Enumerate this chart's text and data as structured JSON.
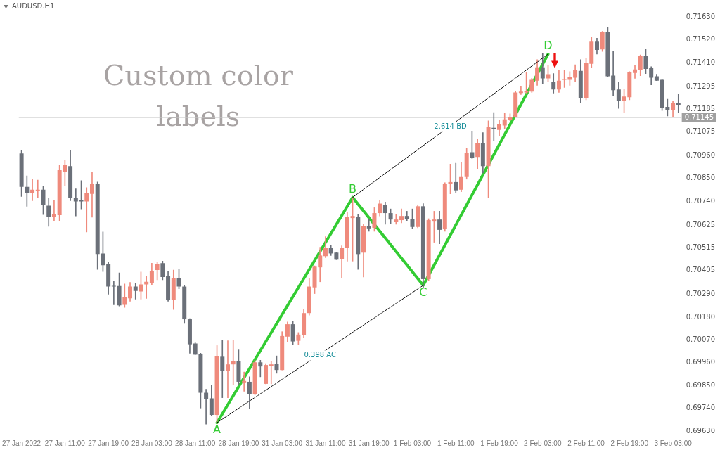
{
  "chart_data": {
    "type": "candlestick",
    "title": "AUDUSD.H1",
    "categories": [
      "27 Jan 2022",
      null,
      null,
      null,
      null,
      null,
      null,
      null,
      "27 Jan 11:00",
      null,
      null,
      null,
      null,
      null,
      null,
      null,
      "27 Jan 19:00",
      null,
      null,
      null,
      null,
      null,
      null,
      null,
      "28 Jan 03:00",
      null,
      null,
      null,
      null,
      null,
      null,
      null,
      "28 Jan 11:00",
      null,
      null,
      null,
      null,
      null,
      null,
      null,
      "28 Jan 19:00",
      null,
      null,
      null,
      null,
      null,
      null,
      null,
      "31 Jan 03:00",
      null,
      null,
      null,
      null,
      null,
      null,
      null,
      "31 Jan 11:00",
      null,
      null,
      null,
      null,
      null,
      null,
      null,
      "31 Jan 19:00",
      null,
      null,
      null,
      null,
      null,
      null,
      null,
      "1 Feb 03:00",
      null,
      null,
      null,
      null,
      null,
      null,
      null,
      "1 Feb 11:00",
      null,
      null,
      null,
      null,
      null,
      null,
      null,
      "1 Feb 19:00",
      null,
      null,
      null,
      null,
      null,
      null,
      null,
      "2 Feb 03:00",
      null,
      null,
      null,
      null,
      null,
      null,
      null,
      "2 Feb 11:00",
      null,
      null,
      null,
      null,
      null,
      null,
      null,
      "2 Feb 19:00",
      null,
      null,
      null,
      null,
      null,
      null,
      null,
      "3 Feb 03:00",
      null
    ],
    "ohlc": [
      [
        0.70971,
        0.70987,
        0.70763,
        0.7081
      ],
      [
        0.7081,
        0.70863,
        0.70716,
        0.7078
      ],
      [
        0.7078,
        0.70847,
        0.70743,
        0.70796
      ],
      [
        0.7079,
        0.70843,
        0.70759,
        0.70796
      ],
      [
        0.70796,
        0.70813,
        0.70676,
        0.70723
      ],
      [
        0.70719,
        0.70753,
        0.70619,
        0.70663
      ],
      [
        0.70663,
        0.70746,
        0.70646,
        0.70679
      ],
      [
        0.70673,
        0.70914,
        0.70646,
        0.7089
      ],
      [
        0.70884,
        0.70937,
        0.70813,
        0.70914
      ],
      [
        0.7091,
        0.70984,
        0.70743,
        0.70756
      ],
      [
        0.70756,
        0.708,
        0.70669,
        0.70739
      ],
      [
        0.70746,
        0.7084,
        0.70703,
        0.70739
      ],
      [
        0.70739,
        0.70806,
        0.70592,
        0.7078
      ],
      [
        0.70776,
        0.7088,
        0.70663,
        0.70823
      ],
      [
        0.70823,
        0.70833,
        0.70411,
        0.70485
      ],
      [
        0.70488,
        0.70592,
        0.70401,
        0.70431
      ],
      [
        0.70435,
        0.70445,
        0.70291,
        0.70328
      ],
      [
        0.70331,
        0.70354,
        0.7024,
        0.70328
      ],
      [
        0.70331,
        0.70394,
        0.70234,
        0.70237
      ],
      [
        0.7024,
        0.70341,
        0.70227,
        0.70277
      ],
      [
        0.70271,
        0.70348,
        0.70257,
        0.70328
      ],
      [
        0.70328,
        0.70344,
        0.70267,
        0.70307
      ],
      [
        0.70304,
        0.70398,
        0.70267,
        0.70338
      ],
      [
        0.70338,
        0.70378,
        0.70271,
        0.70351
      ],
      [
        0.70344,
        0.70441,
        0.70334,
        0.70404
      ],
      [
        0.70408,
        0.70448,
        0.70361,
        0.70438
      ],
      [
        0.70441,
        0.70451,
        0.70361,
        0.70374
      ],
      [
        0.70378,
        0.70401,
        0.70257,
        0.70264
      ],
      [
        0.70264,
        0.70408,
        0.70217,
        0.70368
      ],
      [
        0.70368,
        0.70411,
        0.70317,
        0.70328
      ],
      [
        0.70328,
        0.70334,
        0.7015,
        0.7017
      ],
      [
        0.7017,
        0.70173,
        0.70006,
        0.70049
      ],
      [
        0.70053,
        0.70056,
        0.69999,
        0.69999
      ],
      [
        0.70003,
        0.70006,
        0.69741,
        0.69815
      ],
      [
        0.69815,
        0.69832,
        0.69663,
        0.69785
      ],
      [
        0.69788,
        0.69852,
        0.69704,
        0.69708
      ],
      [
        0.69708,
        0.70043,
        0.69667,
        0.69993
      ],
      [
        0.69989,
        0.70069,
        0.69791,
        0.69922
      ],
      [
        0.69919,
        0.70066,
        0.69791,
        0.69952
      ],
      [
        0.69952,
        0.70069,
        0.69855,
        0.69969
      ],
      [
        0.69969,
        0.70022,
        0.69855,
        0.69868
      ],
      [
        0.69865,
        0.69915,
        0.69822,
        0.69872
      ],
      [
        0.69868,
        0.69892,
        0.69738,
        0.69808
      ],
      [
        0.69808,
        0.69972,
        0.69805,
        0.69962
      ],
      [
        0.69962,
        0.69972,
        0.69892,
        0.69942
      ],
      [
        0.69858,
        0.69956,
        0.69858,
        0.69949
      ],
      [
        0.69946,
        0.69966,
        0.69858,
        0.69952
      ],
      [
        0.69956,
        0.69993,
        0.69909,
        0.69925
      ],
      [
        0.69925,
        0.7011,
        0.69925,
        0.70089
      ],
      [
        0.70086,
        0.70157,
        0.70059,
        0.70146
      ],
      [
        0.70146,
        0.7016,
        0.70049,
        0.70063
      ],
      [
        0.70066,
        0.70106,
        0.70049,
        0.70096
      ],
      [
        0.70093,
        0.70217,
        0.70083,
        0.702
      ],
      [
        0.702,
        0.70368,
        0.7019,
        0.70328
      ],
      [
        0.70324,
        0.70428,
        0.70294,
        0.70424
      ],
      [
        0.70421,
        0.70518,
        0.70351,
        0.70478
      ],
      [
        0.70475,
        0.70569,
        0.70468,
        0.70515
      ],
      [
        0.70515,
        0.70528,
        0.70478,
        0.70488
      ],
      [
        0.70492,
        0.70495,
        0.70458,
        0.70458
      ],
      [
        0.70461,
        0.70525,
        0.70368,
        0.70515
      ],
      [
        0.70515,
        0.70686,
        0.70451,
        0.70663
      ],
      [
        0.70659,
        0.70759,
        0.70451,
        0.70669
      ],
      [
        0.70666,
        0.70676,
        0.70411,
        0.70485
      ],
      [
        0.70492,
        0.70629,
        0.70374,
        0.70619
      ],
      [
        0.70619,
        0.70652,
        0.70595,
        0.70609
      ],
      [
        0.70612,
        0.70709,
        0.70595,
        0.70683
      ],
      [
        0.70683,
        0.70743,
        0.70669,
        0.70729
      ],
      [
        0.70723,
        0.70736,
        0.70629,
        0.70683
      ],
      [
        0.70683,
        0.70703,
        0.70632,
        0.70652
      ],
      [
        0.70639,
        0.70676,
        0.70629,
        0.70652
      ],
      [
        0.70649,
        0.70703,
        0.70636,
        0.70669
      ],
      [
        0.70669,
        0.70692,
        0.70646,
        0.70656
      ],
      [
        0.70656,
        0.70703,
        0.70609,
        0.70616
      ],
      [
        0.70616,
        0.70723,
        0.70612,
        0.70716
      ],
      [
        0.70716,
        0.70729,
        0.70324,
        0.70364
      ],
      [
        0.70364,
        0.70656,
        0.70357,
        0.70649
      ],
      [
        0.70642,
        0.70692,
        0.70542,
        0.70652
      ],
      [
        0.70652,
        0.70692,
        0.70535,
        0.70602
      ],
      [
        0.70606,
        0.7083,
        0.70595,
        0.70823
      ],
      [
        0.70823,
        0.7092,
        0.70776,
        0.70833
      ],
      [
        0.70833,
        0.70924,
        0.7078,
        0.70793
      ],
      [
        0.70796,
        0.70927,
        0.70786,
        0.70857
      ],
      [
        0.70857,
        0.70998,
        0.70847,
        0.70974
      ],
      [
        0.70977,
        0.71079,
        0.70947,
        0.7095
      ],
      [
        0.70954,
        0.71039,
        0.70897,
        0.71021
      ],
      [
        0.71021,
        0.71072,
        0.70877,
        0.7091
      ],
      [
        0.7091,
        0.71129,
        0.70759,
        0.71099
      ],
      [
        0.71095,
        0.71169,
        0.71032,
        0.71089
      ],
      [
        0.71085,
        0.71132,
        0.71055,
        0.71112
      ],
      [
        0.71106,
        0.71166,
        0.71089,
        0.71136
      ],
      [
        0.71132,
        0.71163,
        0.71129,
        0.71149
      ],
      [
        0.71146,
        0.71273,
        0.71146,
        0.71266
      ],
      [
        0.71263,
        0.71297,
        0.71256,
        0.7127
      ],
      [
        0.71266,
        0.71363,
        0.71263,
        0.71273
      ],
      [
        0.7127,
        0.71334,
        0.71266,
        0.71327
      ],
      [
        0.71323,
        0.71424,
        0.713,
        0.71387
      ],
      [
        0.71387,
        0.71457,
        0.71307,
        0.71334
      ],
      [
        0.71334,
        0.71397,
        0.71317,
        0.71354
      ],
      [
        0.71317,
        0.71357,
        0.71263,
        0.7128
      ],
      [
        0.7128,
        0.71374,
        0.71266,
        0.71323
      ],
      [
        0.71327,
        0.71374,
        0.7129,
        0.7133
      ],
      [
        0.71327,
        0.71367,
        0.713,
        0.7134
      ],
      [
        0.71337,
        0.714,
        0.71317,
        0.71374
      ],
      [
        0.7137,
        0.71424,
        0.71216,
        0.7124
      ],
      [
        0.7124,
        0.7143,
        0.7123,
        0.71407
      ],
      [
        0.71404,
        0.71534,
        0.71384,
        0.71511
      ],
      [
        0.71511,
        0.71528,
        0.71451,
        0.71471
      ],
      [
        0.71474,
        0.71561,
        0.71464,
        0.71558
      ],
      [
        0.71558,
        0.71581,
        0.7134,
        0.71344
      ],
      [
        0.71347,
        0.71464,
        0.7125,
        0.71277
      ],
      [
        0.7128,
        0.71317,
        0.71189,
        0.71223
      ],
      [
        0.71226,
        0.7128,
        0.71169,
        0.71246
      ],
      [
        0.71243,
        0.71367,
        0.7123,
        0.71363
      ],
      [
        0.7136,
        0.71397,
        0.71334,
        0.71377
      ],
      [
        0.71374,
        0.71447,
        0.71347,
        0.71441
      ],
      [
        0.71441,
        0.71474,
        0.71357,
        0.7138
      ],
      [
        0.71384,
        0.7139,
        0.71303,
        0.71337
      ],
      [
        0.71344,
        0.71354,
        0.71323,
        0.71323
      ],
      [
        0.71327,
        0.7133,
        0.71179,
        0.71193
      ],
      [
        0.71196,
        0.71233,
        0.71152,
        0.71179
      ],
      [
        0.71179,
        0.71223,
        0.71146,
        0.71216
      ],
      [
        0.71216,
        0.7126,
        0.71169,
        0.71203
      ]
    ],
    "colors": [
      "#6b7079",
      "#6b7079",
      "#ef8a7c",
      "#ef8a7c",
      "#6b7079",
      "#6b7079",
      "#ef8a7c",
      "#ef8a7c",
      "#ef8a7c",
      "#6b7079",
      "#6b7079",
      "#6b7079",
      "#ef8a7c",
      "#ef8a7c",
      "#6b7079",
      "#6b7079",
      "#6b7079",
      "#6b7079",
      "#6b7079",
      "#ef8a7c",
      "#ef8a7c",
      "#6b7079",
      "#ef8a7c",
      "#ef8a7c",
      "#ef8a7c",
      "#ef8a7c",
      "#6b7079",
      "#6b7079",
      "#ef8a7c",
      "#6b7079",
      "#6b7079",
      "#6b7079",
      "#6b7079",
      "#6b7079",
      "#6b7079",
      "#6b7079",
      "#ef8a7c",
      "#6b7079",
      "#ef8a7c",
      "#ef8a7c",
      "#6b7079",
      "#ef8a7c",
      "#6b7079",
      "#ef8a7c",
      "#6b7079",
      "#ef8a7c",
      "#ef8a7c",
      "#6b7079",
      "#ef8a7c",
      "#ef8a7c",
      "#6b7079",
      "#ef8a7c",
      "#ef8a7c",
      "#ef8a7c",
      "#ef8a7c",
      "#ef8a7c",
      "#ef8a7c",
      "#6b7079",
      "#6b7079",
      "#ef8a7c",
      "#ef8a7c",
      "#ef8a7c",
      "#6b7079",
      "#ef8a7c",
      "#6b7079",
      "#ef8a7c",
      "#ef8a7c",
      "#6b7079",
      "#6b7079",
      "#ef8a7c",
      "#ef8a7c",
      "#6b7079",
      "#6b7079",
      "#ef8a7c",
      "#6b7079",
      "#ef8a7c",
      "#ef8a7c",
      "#6b7079",
      "#ef8a7c",
      "#ef8a7c",
      "#6b7079",
      "#ef8a7c",
      "#ef8a7c",
      "#6b7079",
      "#ef8a7c",
      "#6b7079",
      "#ef8a7c",
      "#6b7079",
      "#ef8a7c",
      "#ef8a7c",
      "#ef8a7c",
      "#ef8a7c",
      "#ef8a7c",
      "#ef8a7c",
      "#ef8a7c",
      "#ef8a7c",
      "#6b7079",
      "#ef8a7c",
      "#6b7079",
      "#ef8a7c",
      "#ef8a7c",
      "#ef8a7c",
      "#ef8a7c",
      "#6b7079",
      "#ef8a7c",
      "#ef8a7c",
      "#6b7079",
      "#ef8a7c",
      "#6b7079",
      "#6b7079",
      "#6b7079",
      "#ef8a7c",
      "#ef8a7c",
      "#ef8a7c",
      "#ef8a7c",
      "#6b7079",
      "#6b7079",
      "#6b7079",
      "#6b7079",
      "#6b7079",
      "#ef8a7c",
      "#6b7079"
    ],
    "series": [
      {
        "type": "line",
        "color": "#33cc33",
        "line_style": "solid",
        "values": [
          null,
          null,
          null,
          null,
          null,
          null,
          null,
          null,
          null,
          null,
          null,
          null,
          null,
          null,
          null,
          null,
          null,
          null,
          null,
          null,
          null,
          null,
          null,
          null,
          null,
          null,
          null,
          null,
          null,
          null,
          null,
          null,
          null,
          null,
          null,
          null,
          0.6967,
          null,
          null,
          null,
          null,
          null,
          null,
          null,
          null,
          null,
          null,
          null,
          null,
          null,
          null,
          null,
          null,
          null,
          null,
          null,
          null,
          null,
          null,
          null,
          null,
          0.70759,
          null,
          null,
          null,
          null,
          null,
          null,
          null,
          null,
          null,
          null,
          null,
          null,
          0.70334,
          null,
          null,
          null,
          null,
          null,
          null,
          null,
          null,
          null,
          null,
          null,
          null,
          null,
          null,
          null,
          null,
          null,
          null,
          null,
          null,
          null,
          null,
          0.71451,
          null,
          null,
          null,
          null,
          null,
          null,
          null,
          null,
          null,
          null,
          null,
          null,
          null,
          null,
          null,
          null,
          null,
          null,
          null,
          null,
          null,
          null,
          null,
          null
        ],
        "value_labels": [
          null,
          null,
          null,
          null,
          null,
          null,
          null,
          null,
          null,
          null,
          null,
          null,
          null,
          null,
          null,
          null,
          null,
          null,
          null,
          null,
          null,
          null,
          null,
          null,
          null,
          null,
          null,
          null,
          null,
          null,
          null,
          null,
          null,
          null,
          null,
          null,
          "A",
          null,
          null,
          null,
          null,
          null,
          null,
          null,
          null,
          null,
          null,
          null,
          null,
          null,
          null,
          null,
          null,
          null,
          null,
          null,
          null,
          null,
          null,
          null,
          null,
          "B",
          null,
          null,
          null,
          null,
          null,
          null,
          null,
          null,
          null,
          null,
          null,
          null,
          "C",
          null,
          null,
          null,
          null,
          null,
          null,
          null,
          null,
          null,
          null,
          null,
          null,
          null,
          null,
          null,
          null,
          null,
          null,
          null,
          null,
          null,
          null,
          "D",
          null,
          null,
          null,
          null,
          null,
          null,
          null,
          null,
          null,
          null,
          null,
          null,
          null,
          null,
          null,
          null,
          null,
          null,
          null,
          null,
          null,
          null,
          null,
          null
        ]
      },
      {
        "type": "line",
        "name": "0.398 AC",
        "color": "#000000",
        "line_style": "dotted",
        "values": [
          null,
          null,
          null,
          null,
          null,
          null,
          null,
          null,
          null,
          null,
          null,
          null,
          null,
          null,
          null,
          null,
          null,
          null,
          null,
          null,
          null,
          null,
          null,
          null,
          null,
          null,
          null,
          null,
          null,
          null,
          null,
          null,
          null,
          null,
          null,
          null,
          0.6967,
          null,
          null,
          null,
          null,
          null,
          null,
          null,
          null,
          null,
          null,
          null,
          null,
          null,
          null,
          null,
          null,
          null,
          null,
          null,
          null,
          null,
          null,
          null,
          null,
          null,
          null,
          null,
          null,
          null,
          null,
          null,
          null,
          null,
          null,
          null,
          null,
          null,
          0.70334,
          null,
          null,
          null,
          null,
          null,
          null,
          null,
          null,
          null,
          null,
          null,
          null,
          null,
          null,
          null,
          null,
          null,
          null,
          null,
          null,
          null,
          null,
          null,
          null,
          null,
          null,
          null,
          null,
          null,
          null,
          null,
          null,
          null,
          null,
          null,
          null,
          null,
          null,
          null,
          null,
          null,
          null,
          null,
          null,
          null,
          null,
          null
        ]
      },
      {
        "type": "line",
        "name": "2.614 BD",
        "color": "#000000",
        "line_style": "dotted",
        "values": [
          null,
          null,
          null,
          null,
          null,
          null,
          null,
          null,
          null,
          null,
          null,
          null,
          null,
          null,
          null,
          null,
          null,
          null,
          null,
          null,
          null,
          null,
          null,
          null,
          null,
          null,
          null,
          null,
          null,
          null,
          null,
          null,
          null,
          null,
          null,
          null,
          null,
          null,
          null,
          null,
          null,
          null,
          null,
          null,
          null,
          null,
          null,
          null,
          null,
          null,
          null,
          null,
          null,
          null,
          null,
          null,
          null,
          null,
          null,
          null,
          null,
          0.70759,
          null,
          null,
          null,
          null,
          null,
          null,
          null,
          null,
          null,
          null,
          null,
          null,
          null,
          null,
          null,
          null,
          null,
          null,
          null,
          null,
          null,
          null,
          null,
          null,
          null,
          null,
          null,
          null,
          null,
          null,
          null,
          null,
          null,
          null,
          null,
          0.71451,
          null,
          null,
          null,
          null,
          null,
          null,
          null,
          null,
          null,
          null,
          null,
          null,
          null,
          null,
          null,
          null,
          null,
          null,
          null,
          null,
          null,
          null,
          null,
          null
        ]
      }
    ],
    "ylim": [
      0.69613,
      0.71682
    ],
    "yticks": [
      {
        "value": 0.7163,
        "label": "0.71630"
      },
      {
        "value": 0.7152,
        "label": "0.71520"
      },
      {
        "value": 0.7141,
        "label": "0.71410"
      },
      {
        "value": 0.71295,
        "label": "0.71295"
      },
      {
        "value": 0.71185,
        "label": "0.71185"
      },
      {
        "value": 0.71075,
        "label": "0.71075"
      },
      {
        "value": 0.7096,
        "label": "0.70960"
      },
      {
        "value": 0.7085,
        "label": "0.70850"
      },
      {
        "value": 0.7074,
        "label": "0.70740"
      },
      {
        "value": 0.70625,
        "label": "0.70625"
      },
      {
        "value": 0.70515,
        "label": "0.70515"
      },
      {
        "value": 0.70405,
        "label": "0.70405"
      },
      {
        "value": 0.7029,
        "label": "0.70290"
      },
      {
        "value": 0.7018,
        "label": "0.70180"
      },
      {
        "value": 0.7007,
        "label": "0.70070"
      },
      {
        "value": 0.6996,
        "label": "0.69960"
      },
      {
        "value": 0.6985,
        "label": "0.69850"
      },
      {
        "value": 0.6974,
        "label": "0.69740"
      },
      {
        "value": 0.6963,
        "label": "0.69630"
      }
    ],
    "ref_lines": [
      {
        "axis": "y",
        "value": 0.71145,
        "label": "0.71145",
        "color": "#c8c8c8"
      }
    ],
    "annotations": [
      "Custom color labels"
    ],
    "marker": "none",
    "grid": false,
    "legend": false
  }
}
